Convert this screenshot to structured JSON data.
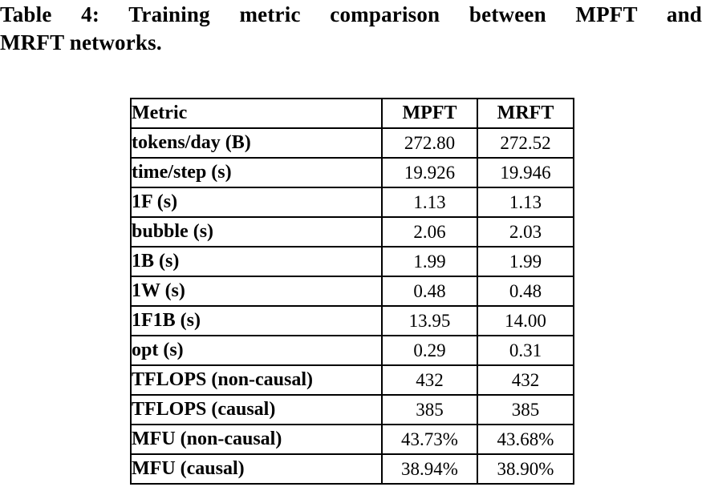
{
  "caption": {
    "full": "Table 4: Training metric comparison between MPFT and MRFT networks.",
    "line1": "Table 4: Training metric comparison between MPFT and",
    "line2": "MRFT networks."
  },
  "table": {
    "headers": [
      "Metric",
      "MPFT",
      "MRFT"
    ],
    "rows": [
      [
        "tokens/day (B)",
        "272.80",
        "272.52"
      ],
      [
        "time/step (s)",
        "19.926",
        "19.946"
      ],
      [
        "1F (s)",
        "1.13",
        "1.13"
      ],
      [
        "bubble (s)",
        "2.06",
        "2.03"
      ],
      [
        "1B (s)",
        "1.99",
        "1.99"
      ],
      [
        "1W (s)",
        "0.48",
        "0.48"
      ],
      [
        "1F1B (s)",
        "13.95",
        "14.00"
      ],
      [
        "opt (s)",
        "0.29",
        "0.31"
      ],
      [
        "TFLOPS (non-causal)",
        "432",
        "432"
      ],
      [
        "TFLOPS (causal)",
        "385",
        "385"
      ],
      [
        "MFU (non-causal)",
        "43.73%",
        "43.68%"
      ],
      [
        "MFU (causal)",
        "38.94%",
        "38.90%"
      ]
    ]
  },
  "colors": {
    "background": "#ffffff",
    "text": "#000000",
    "border": "#000000"
  }
}
